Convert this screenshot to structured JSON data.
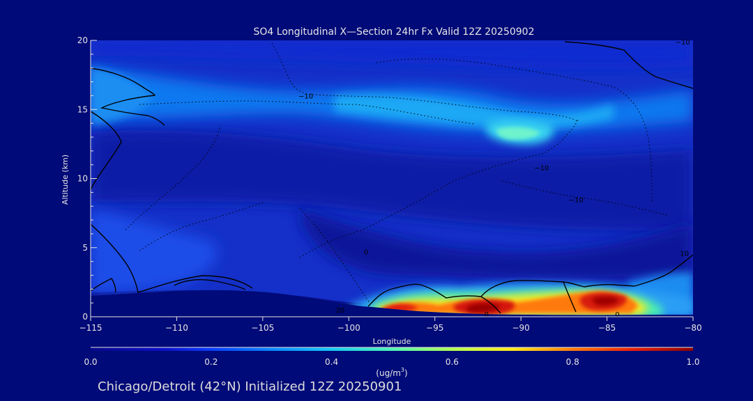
{
  "chart_data": {
    "type": "heatmap",
    "title": "SO4 Longitudinal X—Section 24hr  Fx Valid 12Z 20250902",
    "xlabel": "Longitude",
    "ylabel": "Altitude (km)",
    "xlim": [
      -115,
      -80
    ],
    "ylim": [
      0,
      20
    ],
    "x_ticks": [
      -115,
      -110,
      -105,
      -100,
      -95,
      -90,
      -85,
      -80
    ],
    "x_tick_labels": [
      "−115",
      "−110",
      "−105",
      "−100",
      "−95",
      "−90",
      "−85",
      "−80"
    ],
    "y_ticks": [
      0,
      5,
      10,
      15,
      20
    ],
    "y_tick_labels": [
      "0",
      "5",
      "10",
      "15",
      "20"
    ],
    "colorbar": {
      "min": 0.0,
      "max": 1.0,
      "ticks": [
        0.0,
        0.2,
        0.4,
        0.6,
        0.8,
        1.0
      ],
      "tick_labels": [
        "0.0",
        "0.2",
        "0.4",
        "0.6",
        "0.8",
        "1.0"
      ],
      "units_prefix": "(ug/m",
      "units_sup": "3",
      "units_suffix": ")"
    },
    "contour_labels": [
      {
        "text": "−10",
        "lon": -102.5,
        "alt": 16.0
      },
      {
        "text": "−10",
        "lon": -88.8,
        "alt": 10.8
      },
      {
        "text": "−10",
        "lon": -86.8,
        "alt": 8.5
      },
      {
        "text": "0",
        "lon": -99.0,
        "alt": 4.7
      },
      {
        "text": "10",
        "lon": -80.5,
        "alt": 4.6
      },
      {
        "text": "20",
        "lon": -100.5,
        "alt": 0.5
      },
      {
        "text": "0",
        "lon": -92.0,
        "alt": 0.2
      },
      {
        "text": "0",
        "lon": -84.4,
        "alt": 0.2
      },
      {
        "text": "−10",
        "lon": -80.6,
        "alt": 19.9
      }
    ],
    "features": [
      {
        "name": "surface-peak-1",
        "lon": -97.2,
        "alt": 0.6,
        "value": 0.88
      },
      {
        "name": "surface-peak-2",
        "lon": -91.8,
        "alt": 0.6,
        "value": 0.97
      },
      {
        "name": "surface-peak-3",
        "lon": -85.3,
        "alt": 1.2,
        "value": 0.85
      },
      {
        "name": "upper-level-max",
        "lon": -89.7,
        "alt": 13.3,
        "value": 0.47
      },
      {
        "name": "upper-band",
        "lon": -97.0,
        "alt": 15.5,
        "value": 0.33
      },
      {
        "name": "west-upper-band",
        "lon": -113.5,
        "alt": 15.5,
        "value": 0.28
      },
      {
        "name": "east-lowlevel",
        "lon": -81.0,
        "alt": 2.0,
        "value": 0.45
      }
    ],
    "footer": "Chicago/Detroit (42°N) Initialized 12Z 20250901"
  },
  "colors": {
    "background": "#000a78",
    "text": "#e6e6e6",
    "contour": "#000000"
  }
}
